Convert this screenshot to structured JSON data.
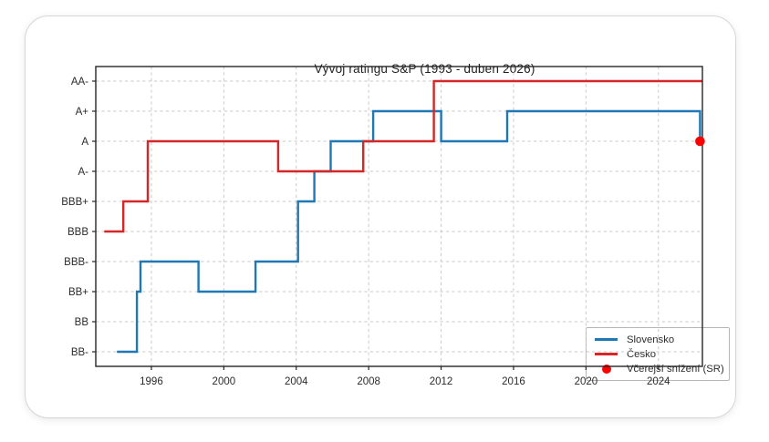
{
  "chart_data": {
    "type": "line",
    "subtype": "step-post",
    "title": "Vývoj ratingu S&P (1993 - duben 2026)",
    "xlabel": "",
    "ylabel": "",
    "xlim": [
      1992.93,
      2026.43
    ],
    "x_ticks": [
      1996,
      2000,
      2004,
      2008,
      2012,
      2016,
      2020,
      2024
    ],
    "y_categories": [
      "BB-",
      "BB",
      "BB+",
      "BBB-",
      "BBB",
      "BBB+",
      "A-",
      "A",
      "A+",
      "AA-"
    ],
    "ylim_category_indices": [
      -0.485,
      9.485
    ],
    "grid": true,
    "grid_style": "dashed",
    "legend_position": "lower right",
    "series": [
      {
        "name": "Slovensko",
        "color": "#1f77b4",
        "end_year": 2026.3,
        "steps": [
          {
            "year": 1994.1,
            "rating": "BB-"
          },
          {
            "year": 1995.2,
            "rating": "BB+"
          },
          {
            "year": 1995.4,
            "rating": "BBB-"
          },
          {
            "year": 1998.6,
            "rating": "BB+"
          },
          {
            "year": 2001.75,
            "rating": "BBB-"
          },
          {
            "year": 2004.1,
            "rating": "BBB+"
          },
          {
            "year": 2005.0,
            "rating": "A-"
          },
          {
            "year": 2005.9,
            "rating": "A"
          },
          {
            "year": 2008.25,
            "rating": "A+"
          },
          {
            "year": 2012.0,
            "rating": "A"
          },
          {
            "year": 2015.65,
            "rating": "A+"
          },
          {
            "year": 2026.3,
            "rating": "A"
          }
        ]
      },
      {
        "name": "Česko",
        "color": "#d62728",
        "end_year": 2026.43,
        "steps": [
          {
            "year": 1993.4,
            "rating": "BBB"
          },
          {
            "year": 1994.45,
            "rating": "BBB+"
          },
          {
            "year": 1995.8,
            "rating": "A"
          },
          {
            "year": 2003.0,
            "rating": "A-"
          },
          {
            "year": 2007.7,
            "rating": "A"
          },
          {
            "year": 2011.6,
            "rating": "AA-"
          }
        ]
      }
    ],
    "marker": {
      "label": "Včerejší snížení (SR)",
      "year": 2026.3,
      "rating": "A",
      "color": "#ff0000"
    }
  },
  "legend": {
    "items": [
      {
        "label": "Slovensko",
        "swatch": "line",
        "color": "#1f77b4"
      },
      {
        "label": "Česko",
        "swatch": "line",
        "color": "#d62728"
      },
      {
        "label": "Včerejší snížení (SR)",
        "swatch": "dot",
        "color": "#ff0000"
      }
    ]
  },
  "colors": {
    "grid": "#c9c9c9",
    "spine": "#262626",
    "card_border": "#d6d6da",
    "title_text": "#1f1f1f"
  }
}
